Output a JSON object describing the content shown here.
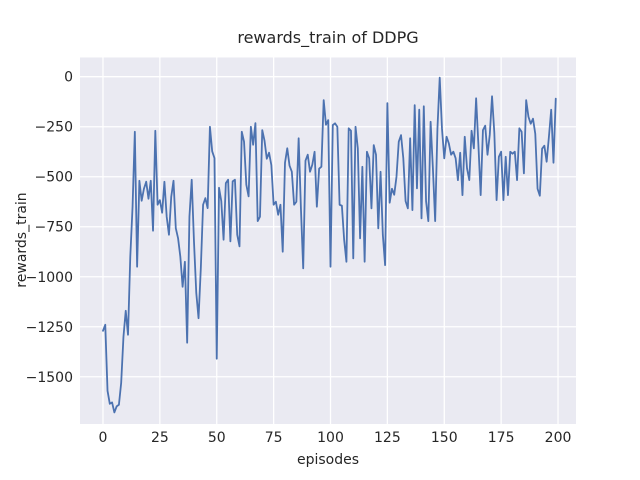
{
  "figure": {
    "title": "rewards_train of DDPG",
    "xlabel": "episodes",
    "ylabel": "rewards_train"
  },
  "colors": {
    "figure_bg": "#ffffff",
    "axes_bg": "#eaeaf2",
    "grid": "#ffffff",
    "text": "#262626",
    "line": "#4c72b0"
  },
  "chart_data": {
    "type": "line",
    "title": "rewards_train of DDPG",
    "xlabel": "episodes",
    "ylabel": "rewards_train",
    "legend": "none",
    "grid": "on",
    "x_ticks": [
      0,
      25,
      50,
      75,
      100,
      125,
      150,
      175,
      200
    ],
    "y_ticks": [
      0,
      -250,
      -500,
      -750,
      -1000,
      -1250,
      -1500
    ],
    "xlim": [
      -10.1,
      207.9
    ],
    "ylim": [
      -1736,
      96
    ],
    "series": [
      {
        "name": "rewards_train",
        "color": "#4c72b0",
        "x_is_episode_index": true,
        "y": [
          -1270,
          -1240,
          -1570,
          -1635,
          -1628,
          -1678,
          -1648,
          -1640,
          -1530,
          -1300,
          -1170,
          -1290,
          -900,
          -650,
          -275,
          -950,
          -520,
          -620,
          -560,
          -525,
          -610,
          -520,
          -770,
          -270,
          -640,
          -617,
          -680,
          -525,
          -700,
          -790,
          -600,
          -520,
          -757,
          -807,
          -900,
          -1050,
          -925,
          -1330,
          -700,
          -515,
          -825,
          -1080,
          -1207,
          -958,
          -640,
          -607,
          -657,
          -250,
          -373,
          -407,
          -1410,
          -555,
          -622,
          -815,
          -532,
          -515,
          -823,
          -523,
          -515,
          -790,
          -848,
          -275,
          -325,
          -540,
          -598,
          -250,
          -340,
          -232,
          -722,
          -700,
          -267,
          -320,
          -410,
          -380,
          -442,
          -640,
          -625,
          -690,
          -640,
          -875,
          -430,
          -358,
          -445,
          -475,
          -640,
          -625,
          -308,
          -658,
          -958,
          -420,
          -390,
          -475,
          -440,
          -375,
          -650,
          -460,
          -450,
          -117,
          -240,
          -217,
          -950,
          -242,
          -233,
          -250,
          -640,
          -645,
          -815,
          -925,
          -258,
          -270,
          -908,
          -250,
          -358,
          -808,
          -450,
          -925,
          -375,
          -408,
          -658,
          -342,
          -390,
          -758,
          -475,
          -790,
          -942,
          -132,
          -630,
          -560,
          -590,
          -500,
          -325,
          -292,
          -408,
          -622,
          -658,
          -308,
          -667,
          -142,
          -558,
          -165,
          -708,
          -148,
          -622,
          -722,
          -225,
          -458,
          -722,
          -260,
          -5,
          -260,
          -408,
          -300,
          -333,
          -390,
          -375,
          -408,
          -517,
          -380,
          -592,
          -300,
          -458,
          -517,
          -270,
          -358,
          -108,
          -340,
          -592,
          -267,
          -245,
          -390,
          -290,
          -98,
          -280,
          -617,
          -400,
          -375,
          -617,
          -400,
          -592,
          -375,
          -385,
          -375,
          -517,
          -258,
          -275,
          -483,
          -117,
          -200,
          -235,
          -210,
          -285,
          -560,
          -595,
          -360,
          -345,
          -425,
          -300,
          -165,
          -430,
          -110
        ]
      }
    ]
  }
}
